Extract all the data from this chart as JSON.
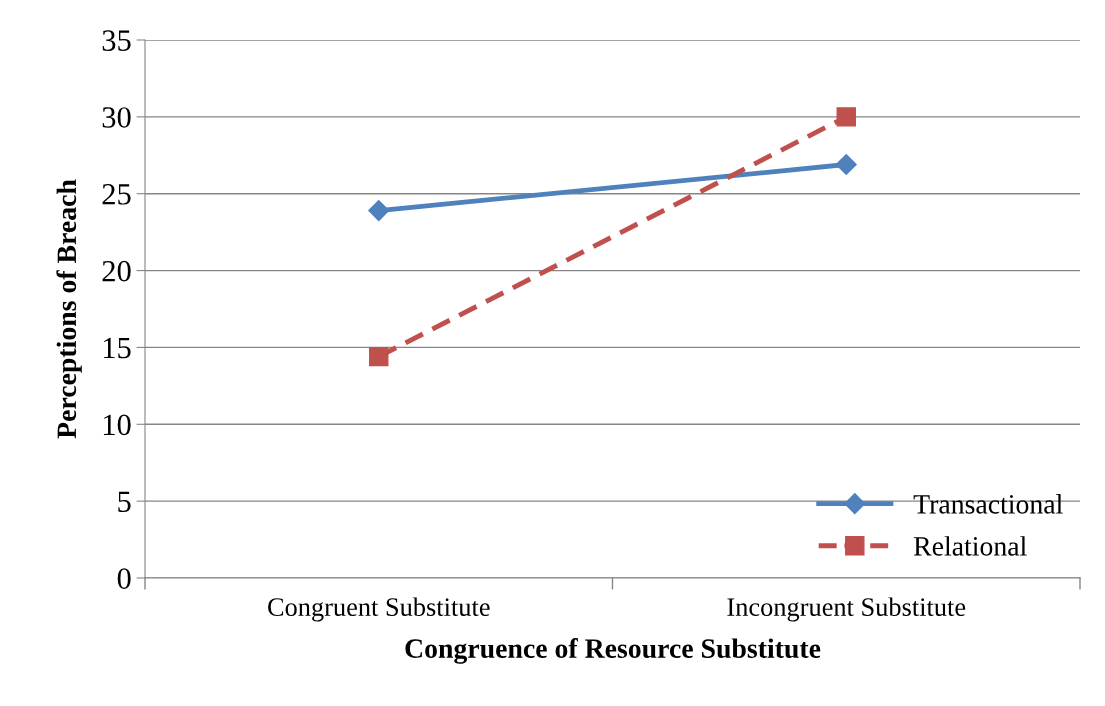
{
  "chart_data": {
    "type": "line",
    "xlabel": "Congruence of Resource Substitute",
    "ylabel": "Perceptions of Breach",
    "categories": [
      "Congruent Substitute",
      "Incongruent Substitute"
    ],
    "series": [
      {
        "name": "Transactional",
        "color": "#4f81bd",
        "values": [
          23.9,
          26.9
        ],
        "marker": "diamond",
        "line_style": "solid"
      },
      {
        "name": "Relational",
        "color": "#c0504d",
        "values": [
          14.4,
          30.0
        ],
        "marker": "square",
        "line_style": "dashed"
      }
    ],
    "ylim": [
      0,
      35
    ],
    "yticks": [
      0,
      5,
      10,
      15,
      20,
      25,
      30,
      35
    ],
    "grid": "y",
    "legend": "bottom right"
  }
}
